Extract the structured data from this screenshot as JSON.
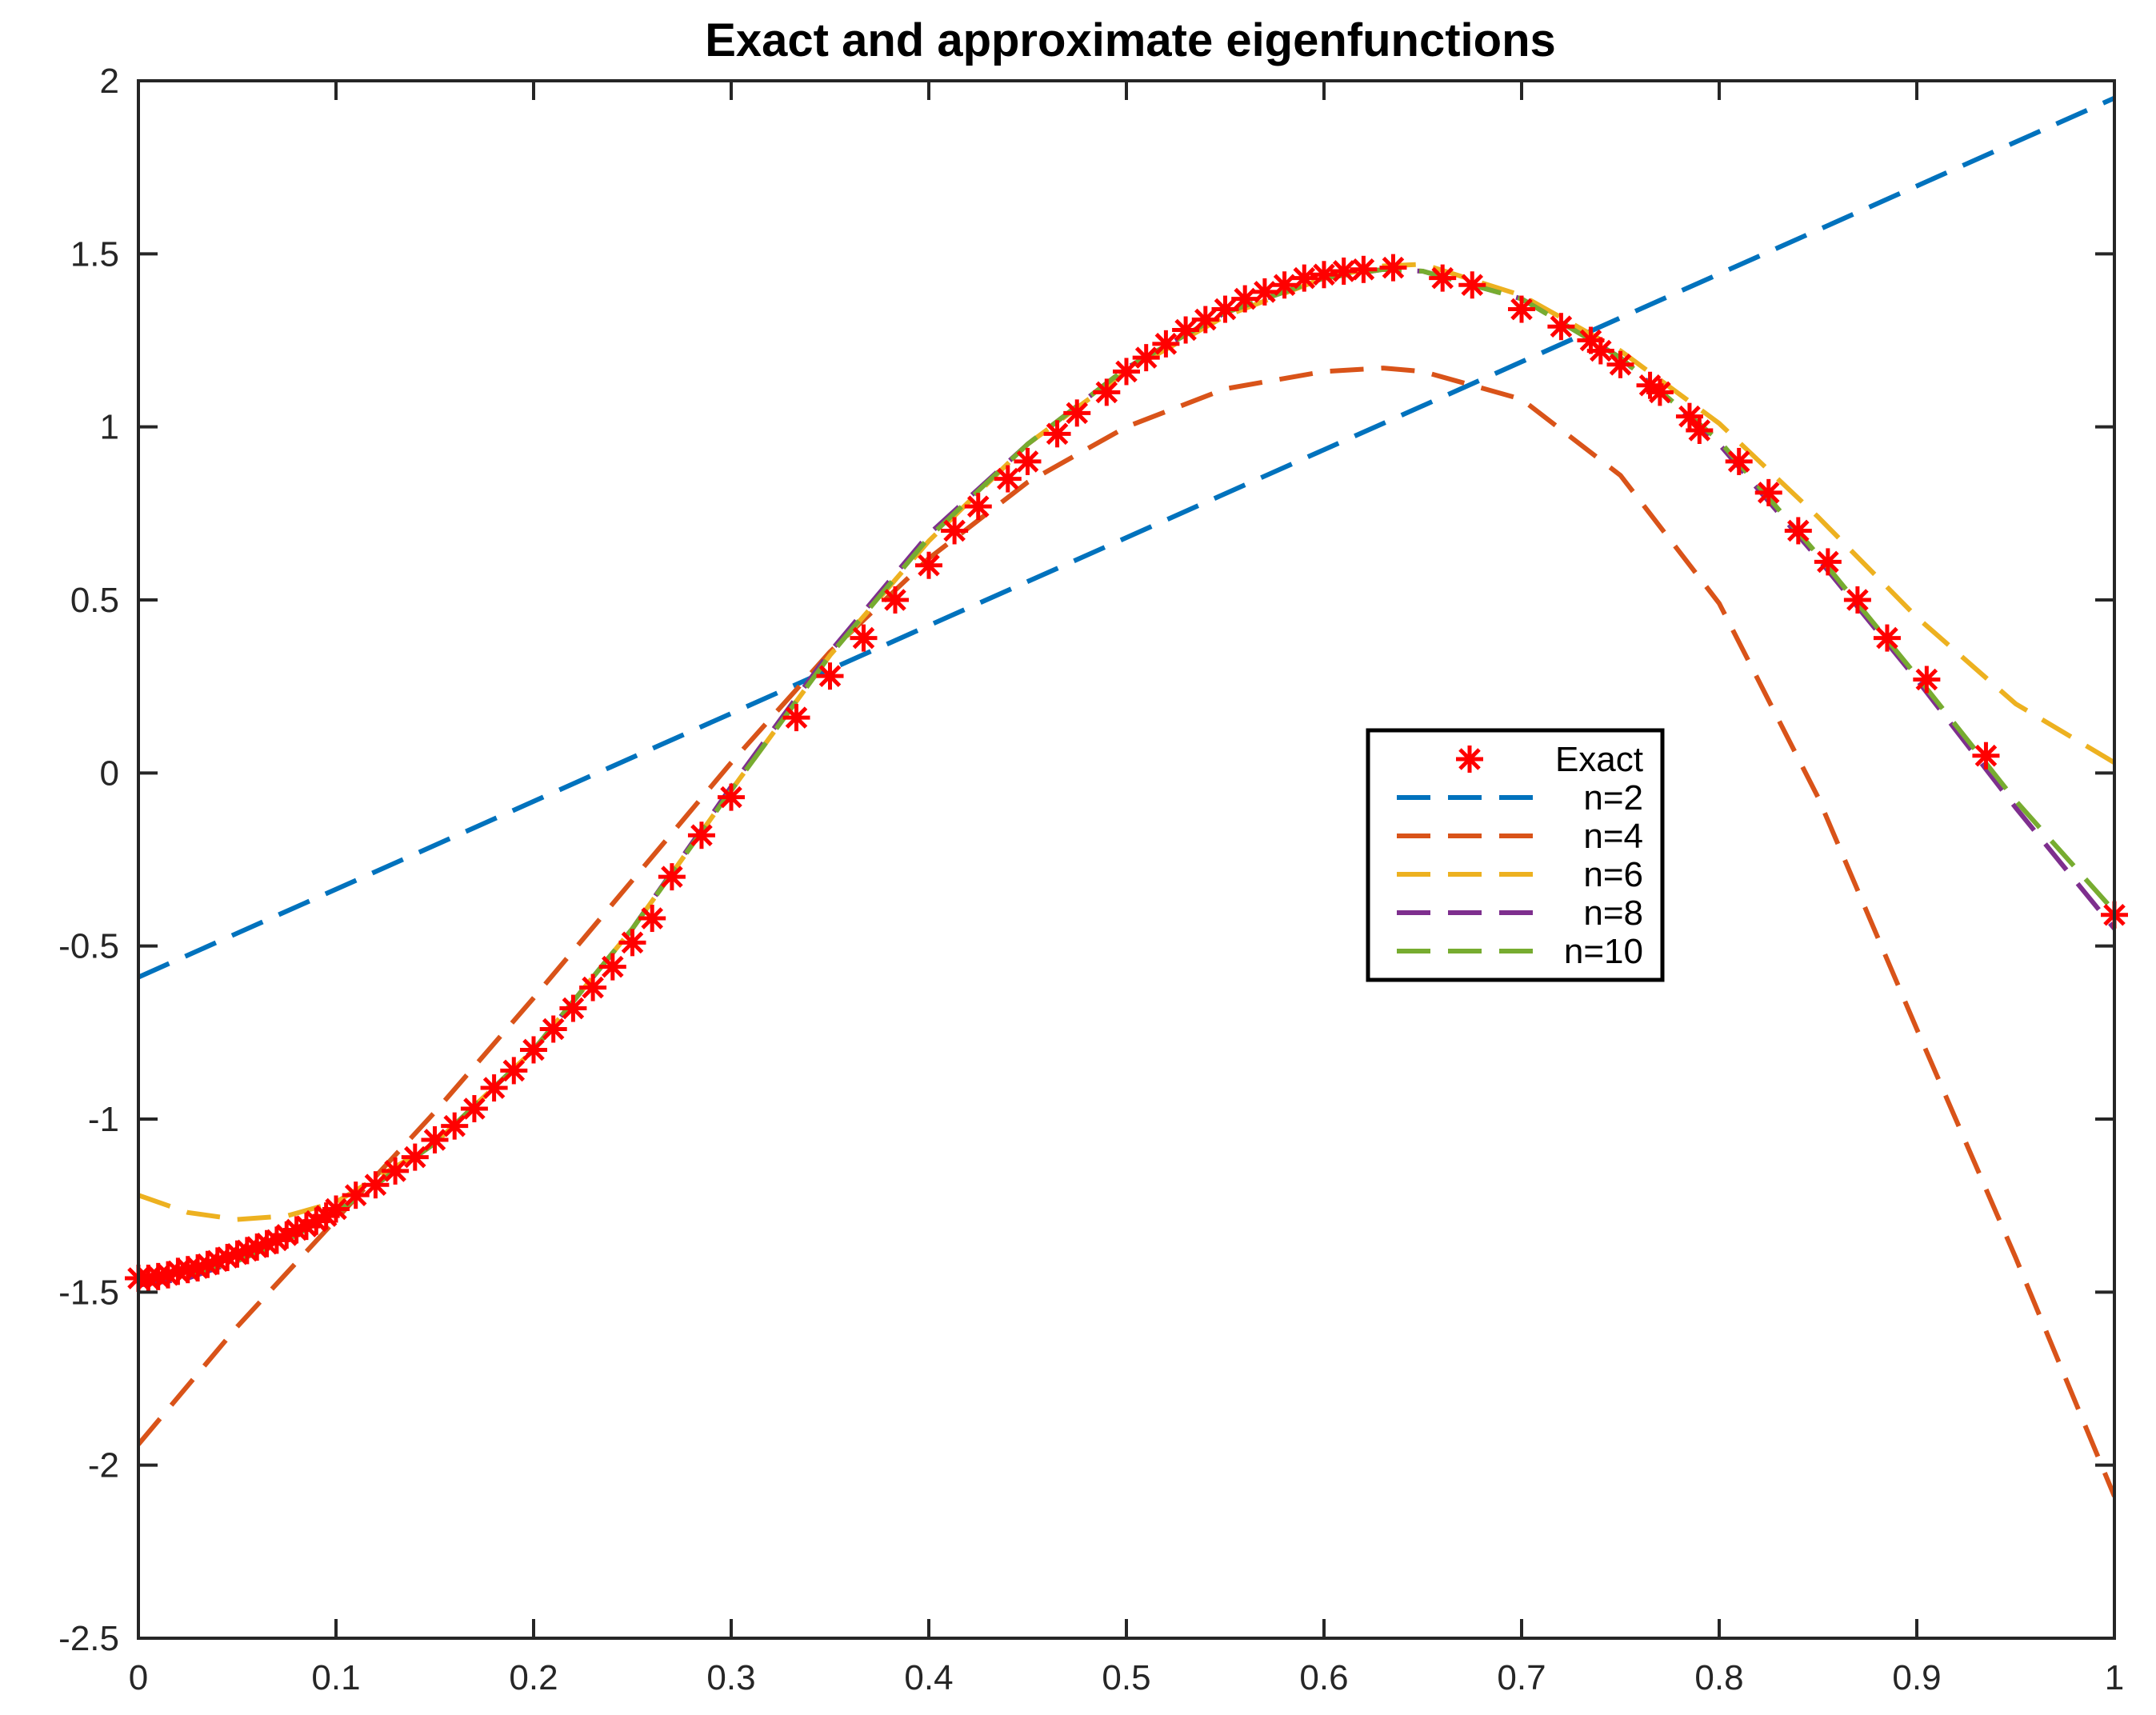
{
  "chart_data": {
    "type": "line",
    "title": "Exact and approximate eigenfunctions",
    "xlabel": "",
    "ylabel": "",
    "xlim": [
      0,
      1
    ],
    "ylim": [
      -2.5,
      2
    ],
    "x_ticks": [
      0,
      0.1,
      0.2,
      0.3,
      0.4,
      0.5,
      0.6,
      0.7,
      0.8,
      0.9,
      1
    ],
    "x_tick_labels": [
      "0",
      "0.1",
      "0.2",
      "0.3",
      "0.4",
      "0.5",
      "0.6",
      "0.7",
      "0.8",
      "0.9",
      "1"
    ],
    "y_ticks": [
      2,
      1.5,
      1,
      0.5,
      0,
      -0.5,
      -1,
      -1.5,
      -2,
      -2.5
    ],
    "y_tick_labels": [
      "2",
      "1.5",
      "1",
      "0.5",
      "0",
      "-0.5",
      "-1",
      "-1.5",
      "-2",
      "-2.5"
    ],
    "grid": false,
    "legend_position": "center-right",
    "series": [
      {
        "name": "Exact",
        "style": "markers",
        "marker": "asterisk",
        "color": "#ff0000",
        "x": [
          0,
          0.005,
          0.01,
          0.015,
          0.02,
          0.025,
          0.03,
          0.035,
          0.04,
          0.045,
          0.05,
          0.055,
          0.06,
          0.065,
          0.07,
          0.075,
          0.08,
          0.085,
          0.09,
          0.095,
          0.1,
          0.11,
          0.12,
          0.13,
          0.14,
          0.15,
          0.16,
          0.17,
          0.18,
          0.19,
          0.2,
          0.21,
          0.22,
          0.23,
          0.24,
          0.25,
          0.26,
          0.27,
          0.285,
          0.3,
          0.333,
          0.35,
          0.367,
          0.383,
          0.4,
          0.413,
          0.425,
          0.44,
          0.45,
          0.465,
          0.475,
          0.49,
          0.5,
          0.51,
          0.52,
          0.53,
          0.54,
          0.55,
          0.56,
          0.57,
          0.58,
          0.59,
          0.6,
          0.61,
          0.62,
          0.635,
          0.66,
          0.675,
          0.7,
          0.72,
          0.735,
          0.74,
          0.75,
          0.765,
          0.77,
          0.785,
          0.79,
          0.81,
          0.825,
          0.84,
          0.855,
          0.87,
          0.885,
          0.905,
          0.935,
          1.0
        ],
        "y": [
          -1.46,
          -1.46,
          -1.455,
          -1.45,
          -1.44,
          -1.435,
          -1.43,
          -1.42,
          -1.41,
          -1.4,
          -1.39,
          -1.38,
          -1.37,
          -1.36,
          -1.35,
          -1.335,
          -1.32,
          -1.31,
          -1.295,
          -1.28,
          -1.26,
          -1.22,
          -1.19,
          -1.15,
          -1.11,
          -1.06,
          -1.02,
          -0.97,
          -0.91,
          -0.86,
          -0.8,
          -0.74,
          -0.68,
          -0.62,
          -0.56,
          -0.49,
          -0.42,
          -0.3,
          -0.18,
          -0.07,
          0.16,
          0.28,
          0.39,
          0.5,
          0.6,
          0.7,
          0.77,
          0.85,
          0.9,
          0.98,
          1.04,
          1.1,
          1.16,
          1.2,
          1.24,
          1.28,
          1.31,
          1.34,
          1.37,
          1.39,
          1.41,
          1.43,
          1.44,
          1.45,
          1.455,
          1.46,
          1.43,
          1.41,
          1.34,
          1.29,
          1.25,
          1.22,
          1.18,
          1.12,
          1.1,
          1.03,
          0.99,
          0.9,
          0.81,
          0.7,
          0.61,
          0.5,
          0.39,
          0.27,
          0.05,
          -0.41
        ]
      },
      {
        "name": "n=2",
        "style": "dashed",
        "color": "#0072bd",
        "x": [
          0,
          1
        ],
        "y": [
          -0.59,
          1.95
        ]
      },
      {
        "name": "n=4",
        "style": "dashed",
        "color": "#d95319",
        "x": [
          0,
          0.05,
          0.1,
          0.15,
          0.2,
          0.25,
          0.3,
          0.35,
          0.4,
          0.45,
          0.5,
          0.55,
          0.6,
          0.63,
          0.65,
          0.7,
          0.75,
          0.8,
          0.85,
          0.9,
          0.95,
          1.0
        ],
        "y": [
          -1.94,
          -1.6,
          -1.29,
          -0.98,
          -0.65,
          -0.31,
          0.03,
          0.35,
          0.62,
          0.84,
          1.0,
          1.11,
          1.16,
          1.17,
          1.16,
          1.08,
          0.86,
          0.49,
          -0.07,
          -0.74,
          -1.4,
          -2.09
        ]
      },
      {
        "name": "n=6",
        "style": "dashed",
        "color": "#edb120",
        "x": [
          0,
          0.025,
          0.05,
          0.075,
          0.1,
          0.15,
          0.2,
          0.25,
          0.3,
          0.35,
          0.4,
          0.45,
          0.5,
          0.55,
          0.6,
          0.63,
          0.65,
          0.7,
          0.75,
          0.8,
          0.85,
          0.9,
          0.95,
          1.0
        ],
        "y": [
          -1.22,
          -1.27,
          -1.29,
          -1.28,
          -1.24,
          -1.07,
          -0.8,
          -0.45,
          -0.05,
          0.34,
          0.67,
          0.95,
          1.16,
          1.32,
          1.43,
          1.465,
          1.47,
          1.38,
          1.22,
          1.01,
          0.74,
          0.45,
          0.2,
          0.03
        ]
      },
      {
        "name": "n=8",
        "style": "dashed",
        "color": "#7e2f8e",
        "x": [
          0,
          0.025,
          0.05,
          0.075,
          0.1,
          0.15,
          0.2,
          0.25,
          0.3,
          0.35,
          0.4,
          0.45,
          0.5,
          0.55,
          0.6,
          0.63,
          0.65,
          0.7,
          0.75,
          0.8,
          0.85,
          0.9,
          0.95,
          1.0
        ],
        "y": [
          -1.48,
          -1.46,
          -1.41,
          -1.35,
          -1.27,
          -1.07,
          -0.8,
          -0.45,
          -0.04,
          0.35,
          0.69,
          0.95,
          1.17,
          1.33,
          1.43,
          1.455,
          1.45,
          1.37,
          1.2,
          0.95,
          0.62,
          0.27,
          -0.1,
          -0.45
        ]
      },
      {
        "name": "n=10",
        "style": "dashed",
        "color": "#77ac30",
        "x": [
          0,
          0.025,
          0.05,
          0.075,
          0.1,
          0.15,
          0.2,
          0.25,
          0.3,
          0.35,
          0.4,
          0.45,
          0.5,
          0.55,
          0.6,
          0.63,
          0.65,
          0.7,
          0.75,
          0.8,
          0.85,
          0.9,
          0.95,
          1.0
        ],
        "y": [
          -1.46,
          -1.45,
          -1.41,
          -1.35,
          -1.27,
          -1.07,
          -0.8,
          -0.45,
          -0.05,
          0.34,
          0.68,
          0.95,
          1.17,
          1.33,
          1.43,
          1.455,
          1.45,
          1.37,
          1.2,
          0.96,
          0.63,
          0.28,
          -0.08,
          -0.4
        ]
      }
    ]
  }
}
